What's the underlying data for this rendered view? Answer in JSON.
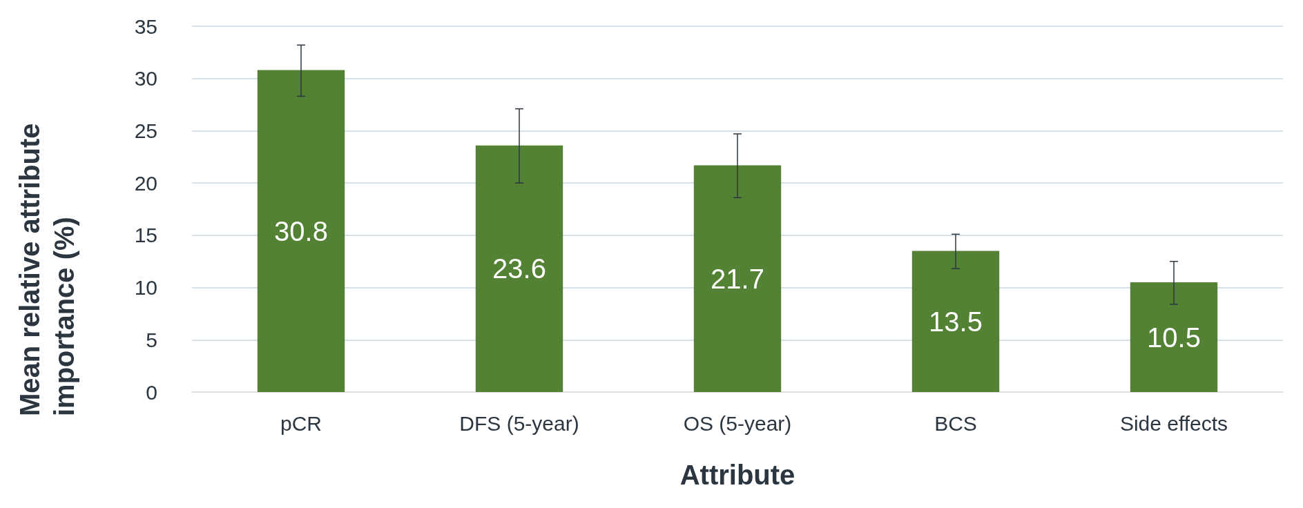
{
  "chart_data": {
    "type": "bar",
    "xlabel": "Attribute",
    "ylabel": "Mean relative attribute importance (%)",
    "categories": [
      "pCR",
      "DFS (5-year)",
      "OS (5-year)",
      "BCS",
      "Side effects"
    ],
    "values": [
      30.8,
      23.6,
      21.7,
      13.5,
      10.5
    ],
    "errors": [
      [
        28.3,
        33.2
      ],
      [
        20.0,
        27.1
      ],
      [
        18.6,
        24.7
      ],
      [
        11.8,
        15.1
      ],
      [
        8.4,
        12.5
      ]
    ],
    "color": "#548235",
    "ylim": [
      0,
      35
    ],
    "yticks": [
      0,
      5,
      10,
      15,
      20,
      25,
      30,
      35
    ],
    "grid": "y",
    "data_labels": true
  }
}
